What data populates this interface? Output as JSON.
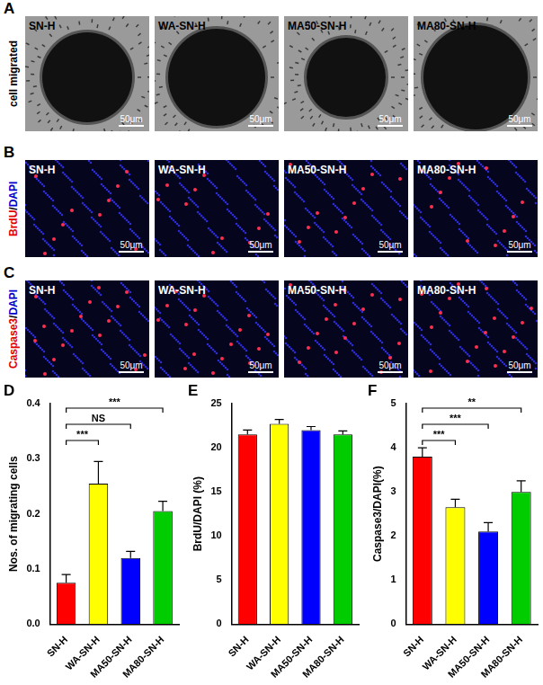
{
  "image_panels": [
    {
      "panel": "A",
      "row_label": "cell migrated",
      "images": [
        "SN-H",
        "WA-SN-H",
        "MA50-SN-H",
        "MA80-SN-H"
      ],
      "scale_bar": "50μm"
    },
    {
      "panel": "B",
      "row_label": "BrdU/DAPI",
      "images": [
        "SN-H",
        "WA-SN-H",
        "MA50-SN-H",
        "MA80-SN-H"
      ],
      "scale_bar": "50μm"
    },
    {
      "panel": "C",
      "row_label": "Caspase3/DAPI",
      "images": [
        "SN-H",
        "WA-SN-H",
        "MA50-SN-H",
        "MA80-SN-H"
      ],
      "scale_bar": "50μm"
    }
  ],
  "chart_data": [
    {
      "type": "bar",
      "panel": "D",
      "y_label": "Nos. of migrating cells",
      "categories": [
        "SN-H",
        "WA-SN-H",
        "MA50-SN-H",
        "MA80-SN-H"
      ],
      "values": [
        0.075,
        0.255,
        0.12,
        0.205
      ],
      "errors": [
        0.015,
        0.04,
        0.012,
        0.018
      ],
      "colors": [
        "#ff0000",
        "#ffff00",
        "#0000ff",
        "#00cc00"
      ],
      "ylim": [
        0,
        0.4
      ],
      "yticks": [
        {
          "value": 0,
          "label": "0.0"
        },
        0.1,
        0.2,
        0.3,
        0.4
      ],
      "grid": false,
      "annotations": [
        {
          "from": "SN-H",
          "to": "WA-SN-H",
          "label": "***"
        },
        {
          "from": "SN-H",
          "to": "MA50-SN-H",
          "label": "NS"
        },
        {
          "from": "SN-H",
          "to": "MA80-SN-H",
          "label": "***"
        }
      ]
    },
    {
      "type": "bar",
      "panel": "E",
      "y_label": "BrdU/DAPI (%)",
      "categories": [
        "SN-H",
        "WA-SN-H",
        "MA50-SN-H",
        "MA80-SN-H"
      ],
      "values": [
        21.5,
        22.7,
        22.0,
        21.5
      ],
      "errors": [
        0.5,
        0.5,
        0.4,
        0.4
      ],
      "colors": [
        "#ff0000",
        "#ffff00",
        "#0000ff",
        "#00cc00"
      ],
      "ylim": [
        0,
        25
      ],
      "yticks": [
        0,
        5,
        10,
        15,
        20,
        25
      ],
      "grid": false
    },
    {
      "type": "bar",
      "panel": "F",
      "y_label": "Caspase3/DAPI(%)",
      "categories": [
        "SN-H",
        "WA-SN-H",
        "MA50-SN-H",
        "MA80-SN-H"
      ],
      "values": [
        3.8,
        2.65,
        2.1,
        3.0
      ],
      "errors": [
        0.2,
        0.18,
        0.2,
        0.25
      ],
      "colors": [
        "#ff0000",
        "#ffff00",
        "#0000ff",
        "#00cc00"
      ],
      "ylim": [
        0,
        5
      ],
      "yticks": [
        0,
        1,
        2,
        3,
        4,
        5
      ],
      "grid": false,
      "annotations": [
        {
          "from": "SN-H",
          "to": "WA-SN-H",
          "label": "***"
        },
        {
          "from": "SN-H",
          "to": "MA50-SN-H",
          "label": "***"
        },
        {
          "from": "SN-H",
          "to": "MA80-SN-H",
          "label": "**"
        }
      ]
    }
  ]
}
